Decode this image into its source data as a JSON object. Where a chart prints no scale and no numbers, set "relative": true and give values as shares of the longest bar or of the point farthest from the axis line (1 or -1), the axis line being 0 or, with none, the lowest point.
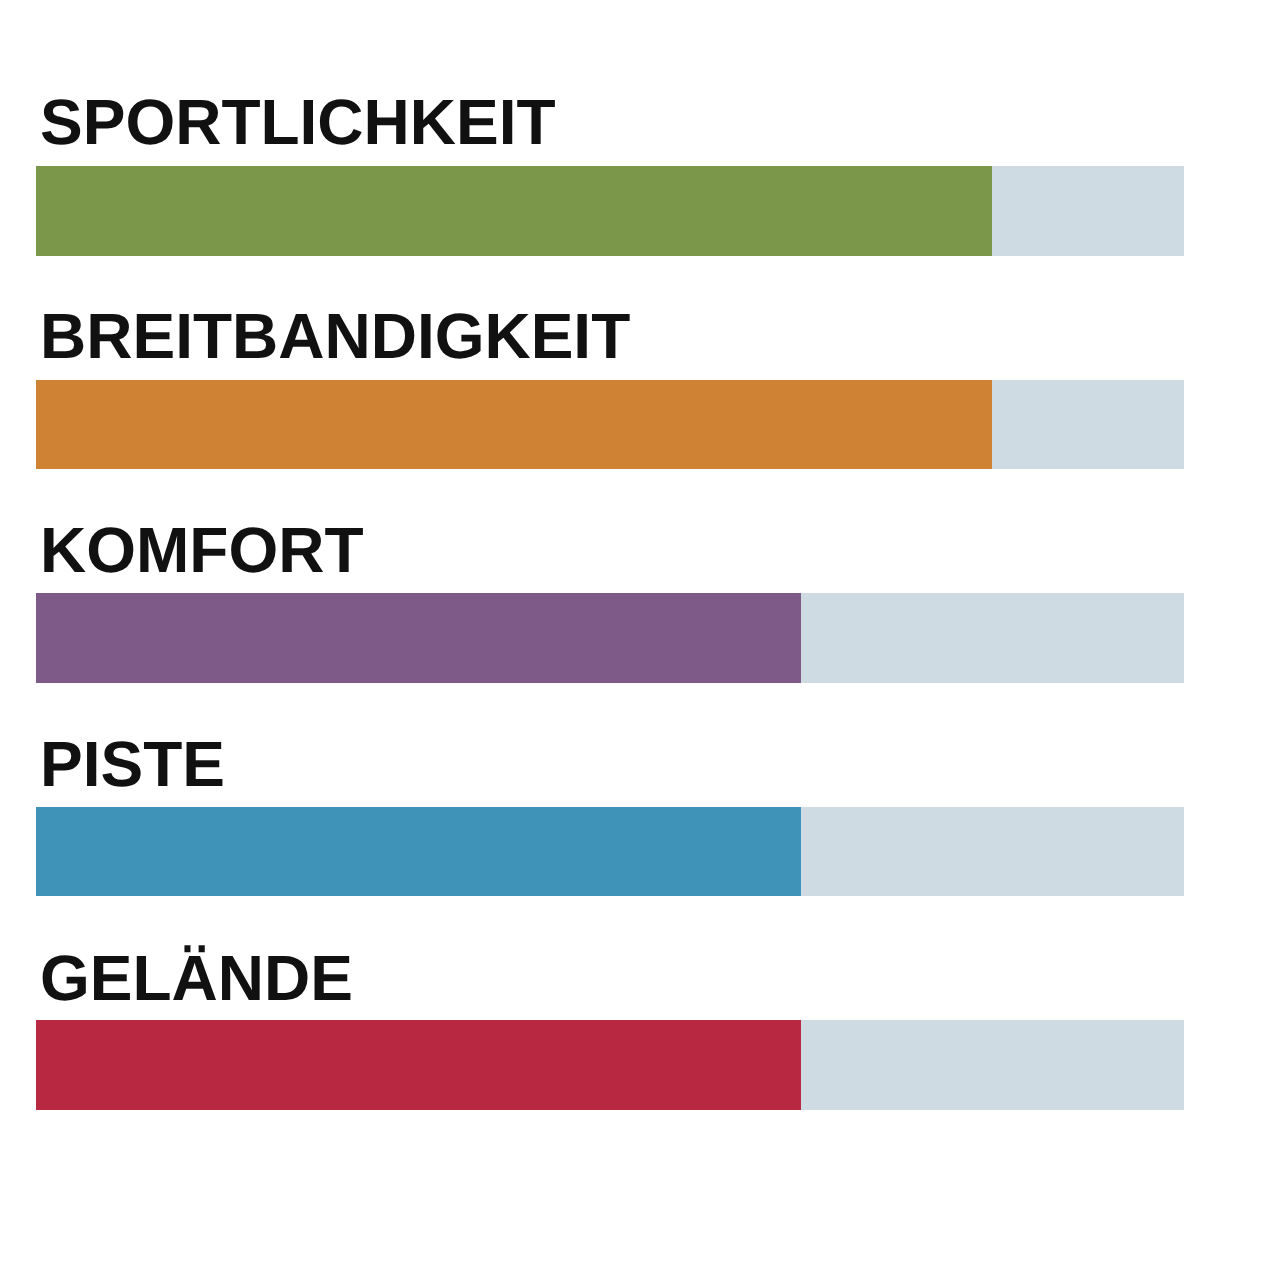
{
  "chart_data": {
    "type": "bar",
    "orientation": "horizontal",
    "stacked": true,
    "relative": true,
    "categories": [
      "SPORTLICHKEIT",
      "BREITBANDIGKEIT",
      "KOMFORT",
      "PISTE",
      "GELÄNDE"
    ],
    "series": [
      {
        "colors": [
          "#7a974a",
          "#d08234",
          "#7e5a88",
          "#3f93b8",
          "#b82840"
        ],
        "values": [
          0.833,
          0.833,
          0.667,
          0.667,
          0.667
        ]
      },
      {
        "color": "#cfdbe3",
        "values": [
          0.167,
          0.167,
          0.333,
          0.333,
          0.333
        ]
      }
    ]
  }
}
